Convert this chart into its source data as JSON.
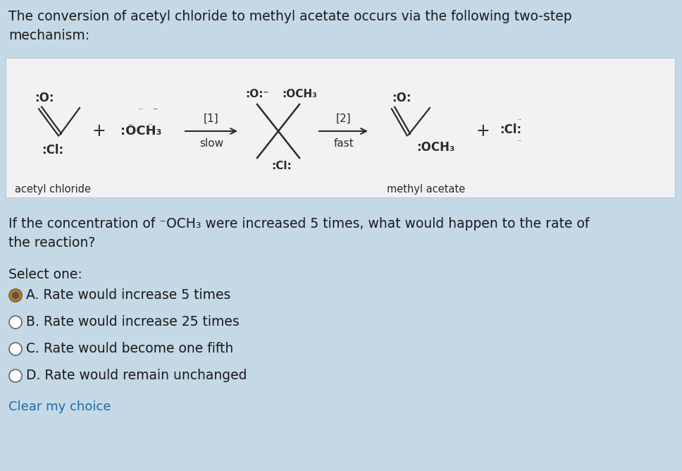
{
  "bg_color": "#c5d8e6",
  "panel_bg": "#f0f2f4",
  "title_text": "The conversion of acetyl chloride to methyl acetate occurs via the following two-step\nmechanism:",
  "question_text": "If the concentration of ⁻OCH₃ were increased 5 times, what would happen to the rate of\nthe reaction?",
  "select_one": "Select one:",
  "options": [
    "A. Rate would increase 5 times",
    "B. Rate would increase 25 times",
    "C. Rate would become one fifth",
    "D. Rate would remain unchanged"
  ],
  "selected_option": 0,
  "clear_text": "Clear my choice",
  "clear_color": "#1a6aaa",
  "text_color": "#1a1a1a",
  "dark_color": "#2a2a2a",
  "figsize": [
    9.68,
    6.68
  ],
  "dpi": 100
}
